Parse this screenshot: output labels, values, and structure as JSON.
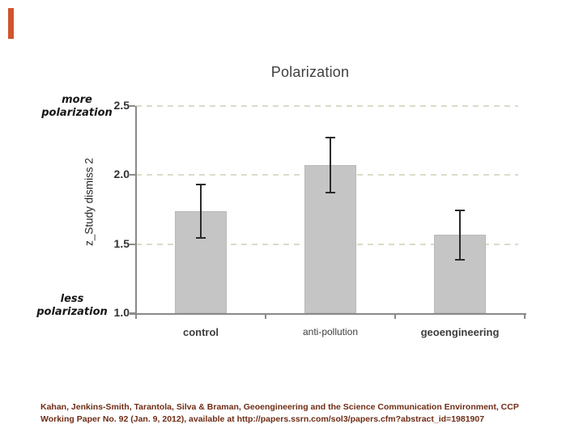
{
  "slide": {
    "accent_color": "#d0552e",
    "background": "#ffffff"
  },
  "chart_data": {
    "type": "bar",
    "title": "Polarization",
    "ylabel": "z_Study dismiss 2",
    "y_annotation_top": "more\npolarization",
    "y_annotation_bottom": "less\npolarization",
    "categories": [
      "control",
      "anti-pollution",
      "geoengineering"
    ],
    "values": [
      1.74,
      2.07,
      1.57
    ],
    "error_low": [
      1.54,
      1.87,
      1.38
    ],
    "error_high": [
      1.94,
      2.28,
      1.75
    ],
    "category_label_bold": [
      true,
      false,
      true
    ],
    "ylim": [
      1.0,
      2.5
    ],
    "yticks": [
      "1.0",
      "1.5",
      "2.0",
      "2.5"
    ],
    "ytick_values": [
      1.0,
      1.5,
      2.0,
      2.5
    ],
    "gridlines_at": [
      1.5,
      2.0,
      2.5
    ],
    "grid_style": "dashed",
    "legend": "none",
    "colors": {
      "bar_fill": "#c5c5c5",
      "bar_border": "#b9b9b9",
      "gridline": "#dbdbc8",
      "axis": "#8a8a8a",
      "error_bar": "#2a2a2a",
      "title_text": "#3f3f3f"
    }
  },
  "citation": {
    "color": "#6f2c15",
    "line1": "Kahan, Jenkins-Smith, Tarantola, Silva & Braman, Geoengineering and the Science Communication Environment, CCP",
    "line2": "Working Paper No. 92 (Jan. 9, 2012), available at http://papers.ssrn.com/sol3/papers.cfm?abstract_id=1981907"
  }
}
